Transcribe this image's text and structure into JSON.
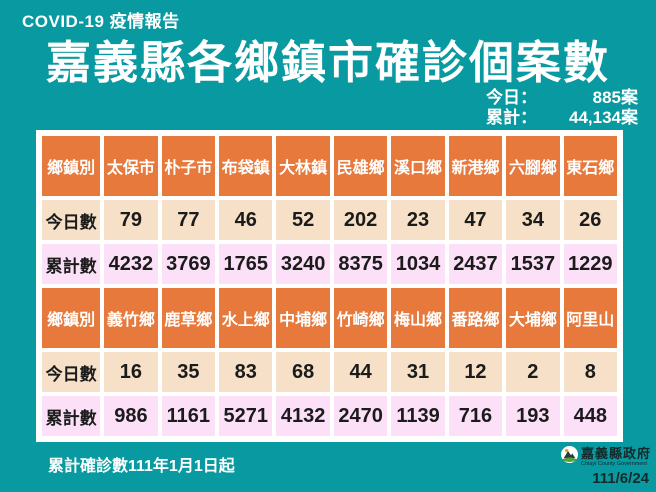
{
  "header": {
    "report_label": "COVID-19 疫情報告",
    "title": "嘉義縣各鄉鎮市確診個案數",
    "today_label": "今日：",
    "today_value": "885案",
    "total_label": "累計：",
    "total_value": "44,134案"
  },
  "chart_data": {
    "type": "table",
    "title": "嘉義縣各鄉鎮市確診個案數",
    "today_total": 885,
    "cumulative_total": 44134,
    "row_headers": [
      "鄉鎮別",
      "今日數",
      "累計數"
    ],
    "tables": [
      {
        "townships": [
          "太保市",
          "朴子市",
          "布袋鎮",
          "大林鎮",
          "民雄鄉",
          "溪口鄉",
          "新港鄉",
          "六腳鄉",
          "東石鄉"
        ],
        "today": [
          79,
          77,
          46,
          52,
          202,
          23,
          47,
          34,
          26
        ],
        "cumulative": [
          4232,
          3769,
          1765,
          3240,
          8375,
          1034,
          2437,
          1537,
          1229
        ]
      },
      {
        "townships": [
          "義竹鄉",
          "鹿草鄉",
          "水上鄉",
          "中埔鄉",
          "竹崎鄉",
          "梅山鄉",
          "番路鄉",
          "大埔鄉",
          "阿里山"
        ],
        "today": [
          16,
          35,
          83,
          68,
          44,
          31,
          12,
          2,
          8
        ],
        "cumulative": [
          986,
          1161,
          5271,
          4132,
          2470,
          1139,
          716,
          193,
          448
        ]
      }
    ]
  },
  "footer": {
    "note": "累計確診數111年1月1日起",
    "org_name": "嘉義縣政府",
    "org_name_en": "Chiayi County Government",
    "date": "111/6/24"
  },
  "colors": {
    "teal": "#0999a0",
    "orange": "#e6793b",
    "peach": "#f6e0c7",
    "pink": "#fbe0f8",
    "dark": "#1b1b1b"
  }
}
